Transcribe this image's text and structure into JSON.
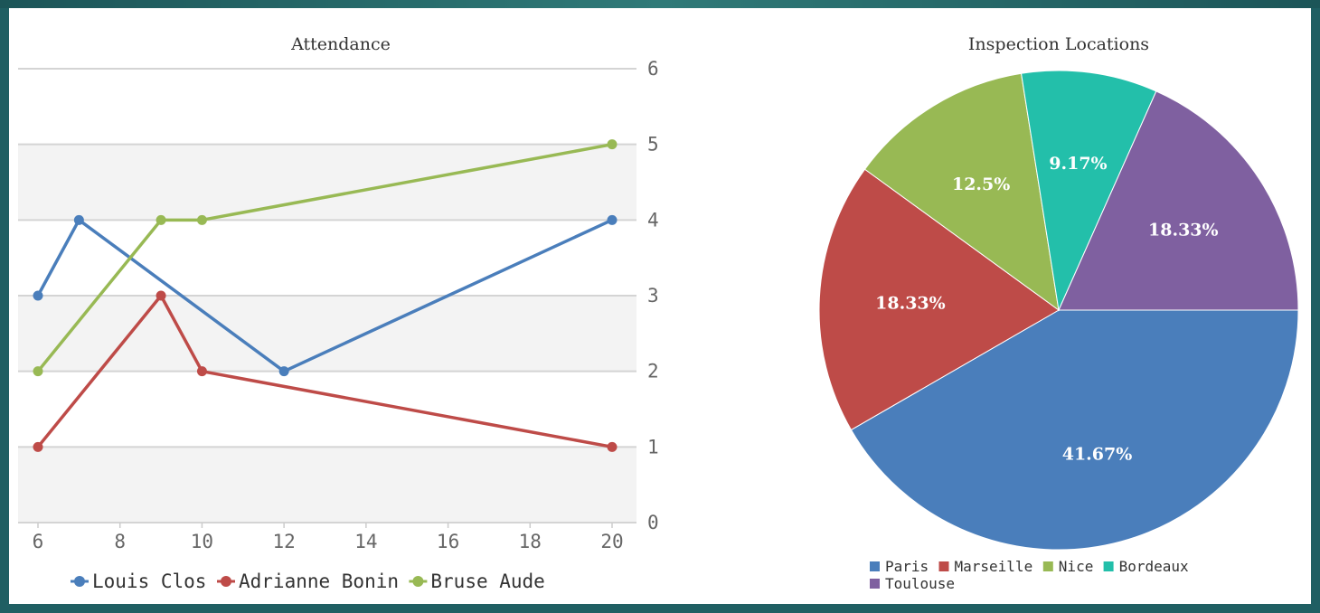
{
  "chart_data": [
    {
      "type": "line",
      "title": "Attendance",
      "x_ticks": [
        "6",
        "8",
        "10",
        "12",
        "14",
        "16",
        "18",
        "20"
      ],
      "y_ticks": [
        "0",
        "1",
        "2",
        "3",
        "4",
        "5",
        "6"
      ],
      "xlim": [
        5.9,
        20.5
      ],
      "ylim": [
        0,
        6
      ],
      "y_axis_side": "right",
      "grid": true,
      "legend_position": "bottom",
      "series": [
        {
          "name": "Louis Clos",
          "color": "#4a7ebb",
          "points": [
            [
              6,
              3
            ],
            [
              7,
              4
            ],
            [
              12,
              2
            ],
            [
              20,
              4
            ]
          ]
        },
        {
          "name": "Adrianne Bonin",
          "color": "#be4b48",
          "points": [
            [
              6,
              1
            ],
            [
              9,
              3
            ],
            [
              10,
              2
            ],
            [
              20,
              1
            ]
          ]
        },
        {
          "name": "Bruse Aude",
          "color": "#98b954",
          "points": [
            [
              6,
              2
            ],
            [
              9,
              4
            ],
            [
              10,
              4
            ],
            [
              20,
              5
            ]
          ]
        }
      ]
    },
    {
      "type": "pie",
      "title": "Inspection Locations",
      "legend_position": "bottom",
      "slices": [
        {
          "name": "Paris",
          "value": 41.67,
          "label": "41.67%",
          "color": "#4a7ebb"
        },
        {
          "name": "Marseille",
          "value": 18.33,
          "label": "18.33%",
          "color": "#be4b48"
        },
        {
          "name": "Nice",
          "value": 12.5,
          "label": "12.5%",
          "color": "#98b954"
        },
        {
          "name": "Bordeaux",
          "value": 9.17,
          "label": "9.17%",
          "color": "#23bfaa"
        },
        {
          "name": "Toulouse",
          "value": 18.33,
          "label": "18.33%",
          "color": "#7f60a0"
        }
      ]
    }
  ]
}
